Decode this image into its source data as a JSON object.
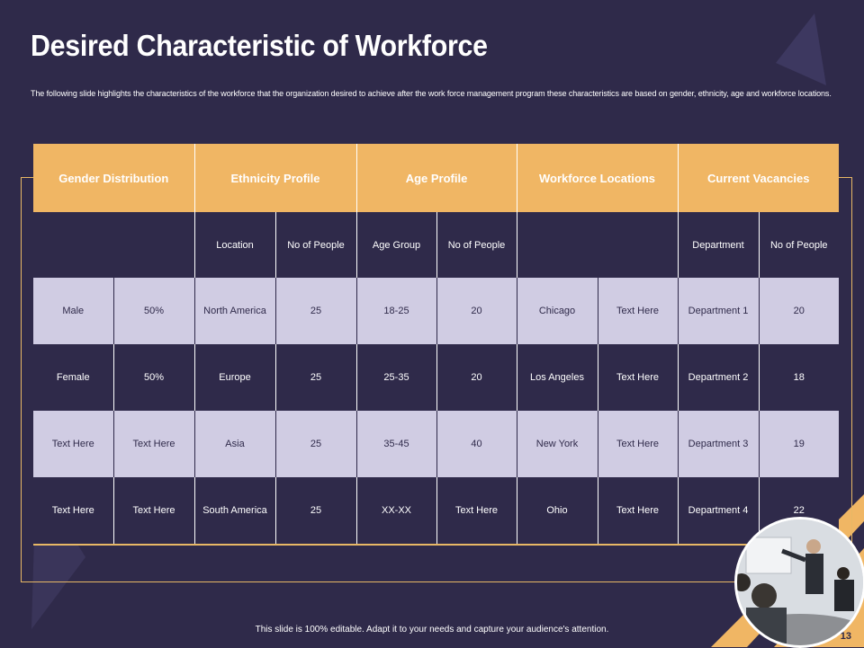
{
  "slide": {
    "title": "Desired Characteristic of Workforce",
    "subtitle": "The following slide highlights the characteristics of the workforce that the organization desired to achieve after the work force management program these characteristics are based on gender, ethnicity, age and workforce locations.",
    "footer": "This slide is 100% editable. Adapt it to your needs and capture your audience's attention.",
    "page_number": "13"
  },
  "colors": {
    "background": "#2f2a4a",
    "accent": "#f0b664",
    "row_light": "#d0cce3"
  },
  "table": {
    "headers": [
      "Gender Distribution",
      "Ethnicity Profile",
      "Age Profile",
      "Workforce Locations",
      "Current Vacancies"
    ],
    "subheaders": [
      "",
      "",
      "Location",
      "No of People",
      "Age Group",
      "No of People",
      "",
      "",
      "Department",
      "No of People"
    ],
    "rows": [
      [
        "Male",
        "50%",
        "North America",
        "25",
        "18-25",
        "20",
        "Chicago",
        "Text Here",
        "Department 1",
        "20"
      ],
      [
        "Female",
        "50%",
        "Europe",
        "25",
        "25-35",
        "20",
        "Los Angeles",
        "Text Here",
        "Department 2",
        "18"
      ],
      [
        "Text Here",
        "Text Here",
        "Asia",
        "25",
        "35-45",
        "40",
        "New York",
        "Text Here",
        "Department 3",
        "19"
      ],
      [
        "Text Here",
        "Text Here",
        "South America",
        "25",
        "XX-XX",
        "Text Here",
        "Ohio",
        "Text Here",
        "Department 4",
        "22"
      ]
    ]
  },
  "image": {
    "icon": "business-meeting-photo"
  }
}
